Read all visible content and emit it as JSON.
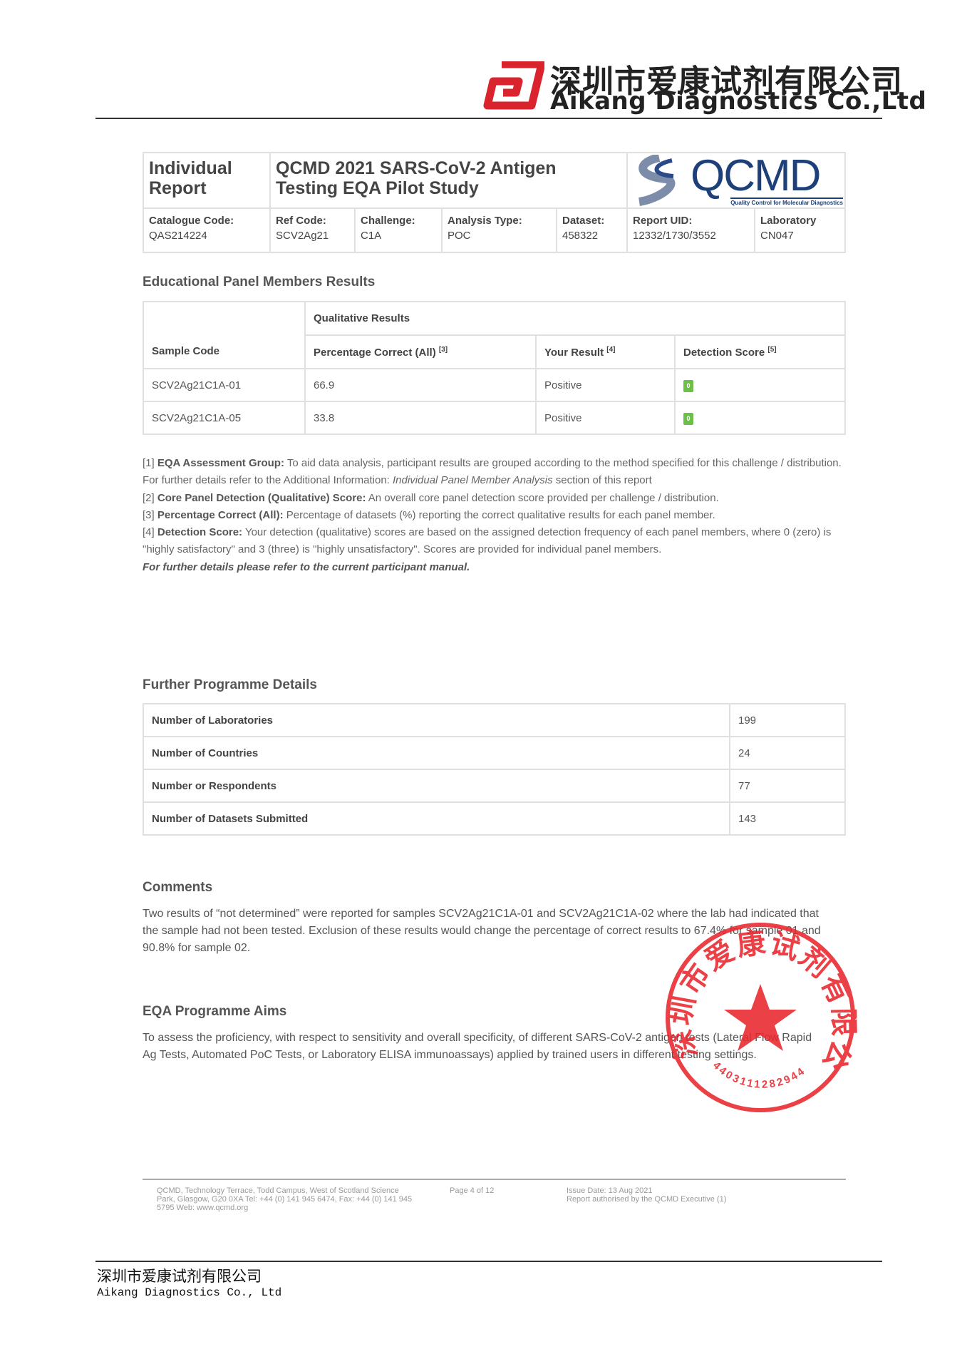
{
  "brand": {
    "name_cn": "深圳市爱康试剂有限公司",
    "name_en": "Aikang Diagnostics Co.,Ltd",
    "logo_color": "#d9232d"
  },
  "report": {
    "type": "Individual Report",
    "title_line1": "QCMD 2021 SARS-CoV-2 Antigen",
    "title_line2": "Testing EQA Pilot Study",
    "qcmd_logo": {
      "text": "QCMD",
      "tagline": "Quality Control for Molecular Diagnostics"
    },
    "fields": [
      {
        "label": "Catalogue Code:",
        "value": "QAS214224"
      },
      {
        "label": "Ref Code:",
        "value": "SCV2Ag21"
      },
      {
        "label": "Challenge:",
        "value": "C1A"
      },
      {
        "label": "Analysis Type:",
        "value": "POC"
      },
      {
        "label": "Dataset:",
        "value": "458322"
      },
      {
        "label": "Report UID:",
        "value": "12332/1730/3552"
      },
      {
        "label": "Laboratory",
        "value": "CN047"
      }
    ]
  },
  "panel": {
    "heading": "Educational Panel Members Results",
    "group_header": "Qualitative Results",
    "columns": [
      "Sample Code",
      "Percentage Correct (All)",
      "Your Result",
      "Detection Score"
    ],
    "column_refs": [
      "",
      "[3]",
      "[4]",
      "[5]"
    ],
    "rows": [
      {
        "sample": "SCV2Ag21C1A-01",
        "pct": "66.9",
        "result": "Positive",
        "score": "0"
      },
      {
        "sample": "SCV2Ag21C1A-05",
        "pct": "33.8",
        "result": "Positive",
        "score": "0"
      }
    ],
    "score_color": "#6cc04a"
  },
  "notes": [
    {
      "num": "[1]",
      "bold": "EQA Assessment Group:",
      "text": " To aid data analysis, participant results are grouped according to the method specified for this challenge / distribution. For further details refer to the Additional Information: ",
      "italic": "Individual Panel Member Analysis",
      "text2": " section of this report"
    },
    {
      "num": "[2]",
      "bold": "Core Panel Detection (Qualitative) Score:",
      "text": " An overall core panel detection score provided per challenge / distribution."
    },
    {
      "num": "[3]",
      "bold": "Percentage Correct (All):",
      "text": " Percentage of datasets (%) reporting the correct qualitative results for each panel member."
    },
    {
      "num": "[4]",
      "bold": "Detection Score:",
      "text": " Your detection (qualitative) scores are based on the assigned detection frequency of each panel members, where 0 (zero) is \"highly satisfactory\" and 3 (three) is \"highly unsatisfactory\". Scores are provided for individual panel members."
    }
  ],
  "notes_final": "For further details please refer to the current participant manual.",
  "programme": {
    "heading": "Further Programme Details",
    "rows": [
      {
        "label": "Number of Laboratories",
        "value": "199"
      },
      {
        "label": "Number of Countries",
        "value": "24"
      },
      {
        "label": "Number or Respondents",
        "value": "77"
      },
      {
        "label": "Number of Datasets Submitted",
        "value": "143"
      }
    ]
  },
  "comments": {
    "heading": "Comments",
    "text": "Two results of “not determined” were reported for samples SCV2Ag21C1A-01 and SCV2Ag21C1A-02 where the lab had indicated that the sample had not been tested. Exclusion of these results would change the percentage of correct results to 67.4% for sample 01 and 90.8% for sample 02."
  },
  "aims": {
    "heading": "EQA Programme Aims",
    "text": "To assess the proficiency, with respect to sensitivity and overall specificity, of different SARS-CoV-2 antigen tests (Lateral Flow Rapid Ag Tests, Automated PoC Tests, or Laboratory ELISA immunoassays) applied by trained users in different testing settings."
  },
  "stamp": {
    "text": "深圳市爱康试剂有限公司",
    "number": "4403111282944",
    "color": "#e8262d"
  },
  "footer": {
    "address": "QCMD, Technology Terrace, Todd Campus, West of Scotland Science Park, Glasgow, G20 0XA Tel: +44 (0) 141 945 6474, Fax: +44 (0) 141 945 5795 Web: www.qcmd.org",
    "page": "Page 4 of 12",
    "issue_date": "Issue Date: 13 Aug 2021",
    "authorised": "Report authorised by the QCMD Executive (1)"
  },
  "bottom": {
    "name_cn": "深圳市爱康试剂有限公司",
    "name_en": "Aikang Diagnostics Co., Ltd"
  }
}
